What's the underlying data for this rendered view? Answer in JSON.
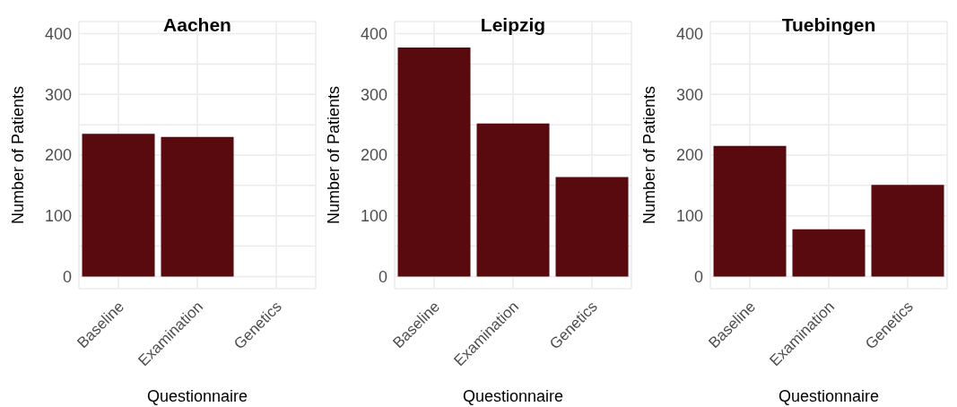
{
  "chart_data": [
    {
      "type": "bar",
      "title": "Aachen",
      "xlabel": "Questionnaire",
      "ylabel": "Number of Patients",
      "categories": [
        "Baseline",
        "Examination",
        "Genetics"
      ],
      "values": [
        235,
        230,
        0
      ],
      "color": "#580a0e",
      "ylim": [
        -20,
        420
      ],
      "yticks": [
        0,
        {
          "value": 50,
          "label": null
        },
        100,
        {
          "value": 150,
          "label": null
        },
        200,
        {
          "value": 250,
          "label": null
        },
        300,
        {
          "value": 350,
          "label": null
        },
        400
      ],
      "grid": true
    },
    {
      "type": "bar",
      "title": "Leipzig",
      "xlabel": "Questionnaire",
      "ylabel": "Number of Patients",
      "categories": [
        "Baseline",
        "Examination",
        "Genetics"
      ],
      "values": [
        377,
        252,
        164
      ],
      "color": "#580a0e",
      "ylim": [
        -20,
        420
      ],
      "yticks": [
        0,
        {
          "value": 50,
          "label": null
        },
        100,
        {
          "value": 150,
          "label": null
        },
        200,
        {
          "value": 250,
          "label": null
        },
        300,
        {
          "value": 350,
          "label": null
        },
        400
      ],
      "grid": true
    },
    {
      "type": "bar",
      "title": "Tuebingen",
      "xlabel": "Questionnaire",
      "ylabel": "Number of Patients",
      "categories": [
        "Baseline",
        "Examination",
        "Genetics"
      ],
      "values": [
        215,
        78,
        151
      ],
      "color": "#580a0e",
      "ylim": [
        -20,
        420
      ],
      "yticks": [
        0,
        {
          "value": 50,
          "label": null
        },
        100,
        {
          "value": 150,
          "label": null
        },
        200,
        {
          "value": 250,
          "label": null
        },
        300,
        {
          "value": 350,
          "label": null
        },
        400
      ],
      "grid": true
    }
  ]
}
